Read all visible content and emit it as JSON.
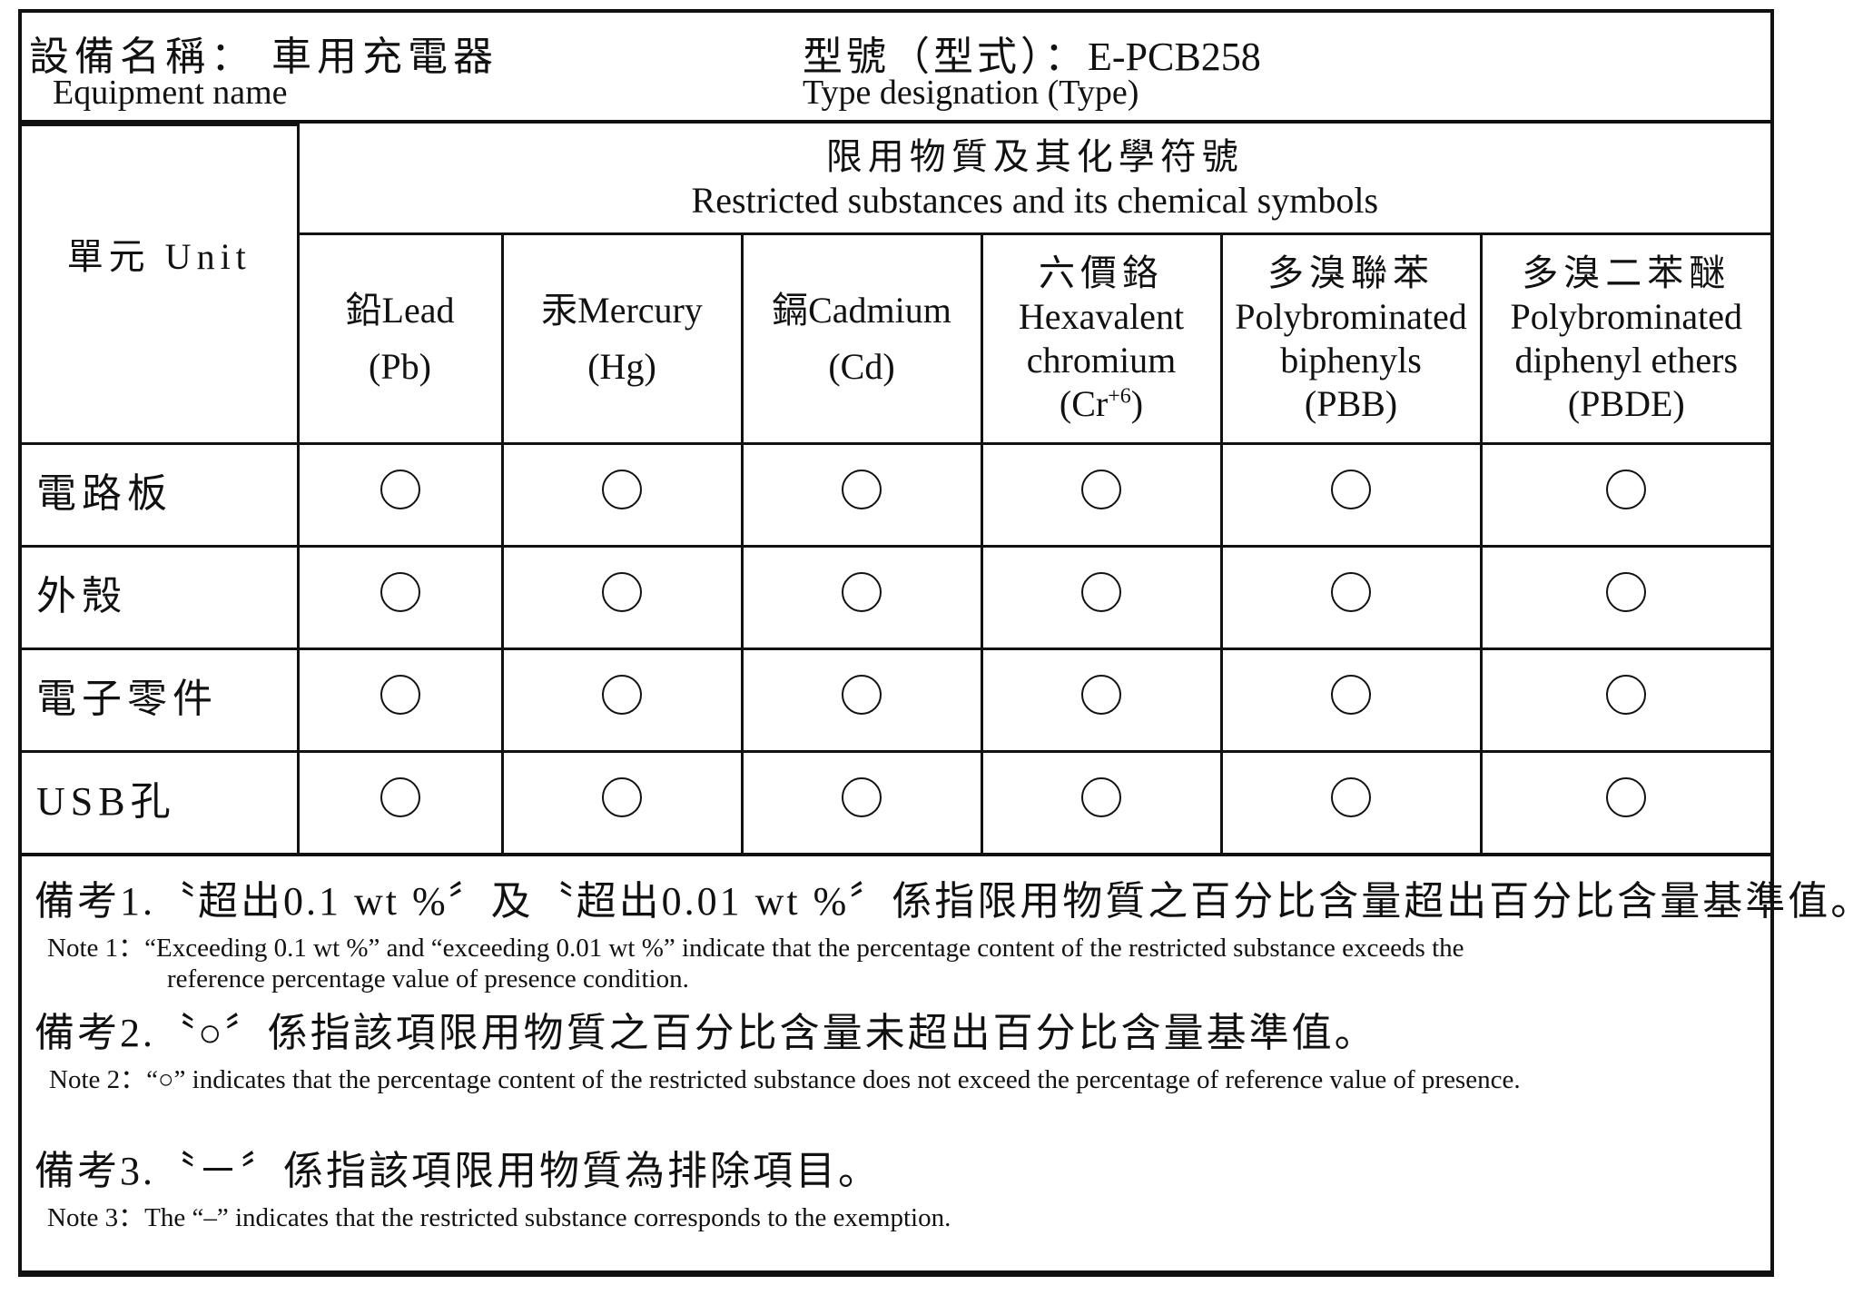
{
  "header": {
    "equipment_label_zh": "設備名稱：",
    "equipment_value": "車用充電器",
    "equipment_label_en": "Equipment name",
    "type_label_zh": "型號（型式）：",
    "type_value": "E-PCB258",
    "type_label_en": "Type designation (Type)"
  },
  "table": {
    "unit_header": "單元 Unit",
    "substances_zh": "限用物質及其化學符號",
    "substances_en": "Restricted substances and its chemical symbols",
    "columns": [
      {
        "zh": "鉛",
        "en": "Lead",
        "symbol": "(Pb)"
      },
      {
        "zh": "汞",
        "en": "Mercury",
        "symbol": "(Hg)"
      },
      {
        "zh": "鎘",
        "en": "Cadmium",
        "symbol": "(Cd)"
      },
      {
        "zh": "六價鉻",
        "en1": "Hexavalent",
        "en2": "chromium",
        "symbol": "(Cr",
        "sup": "+6",
        "symbol_end": ")"
      },
      {
        "zh": "多溴聯苯",
        "en1": "Polybrominated",
        "en2": "biphenyls",
        "symbol": "(PBB)"
      },
      {
        "zh": "多溴二苯醚",
        "en1": "Polybrominated",
        "en2": "diphenyl ethers",
        "symbol": "(PBDE)"
      }
    ],
    "rows": [
      {
        "unit": "電路板",
        "values": [
          "○",
          "○",
          "○",
          "○",
          "○",
          "○"
        ]
      },
      {
        "unit": "外殼",
        "values": [
          "○",
          "○",
          "○",
          "○",
          "○",
          "○"
        ]
      },
      {
        "unit": "電子零件",
        "values": [
          "○",
          "○",
          "○",
          "○",
          "○",
          "○"
        ]
      },
      {
        "unit": "USB孔",
        "values": [
          "○",
          "○",
          "○",
          "○",
          "○",
          "○"
        ]
      }
    ]
  },
  "notes": {
    "n1_zh": "備考1.〝超出0.1 wt %〞及〝超出0.01 wt %〞係指限用物質之百分比含量超出百分比含量基準值。",
    "n1_en": "Note 1：“Exceeding 0.1 wt %” and “exceeding 0.01 wt %” indicate that the percentage content of the restricted substance exceeds the",
    "n1_en2": "reference percentage value of presence condition.",
    "n2_zh": "備考2.〝○〞係指該項限用物質之百分比含量未超出百分比含量基準值。",
    "n2_en": "Note 2：“○” indicates that the percentage content of the restricted substance does not exceed the percentage of reference value of presence.",
    "n3_zh": "備考3.〝－〞係指該項限用物質為排除項目。",
    "n3_en": "Note 3：The “–” indicates that the restricted substance corresponds to the exemption."
  }
}
